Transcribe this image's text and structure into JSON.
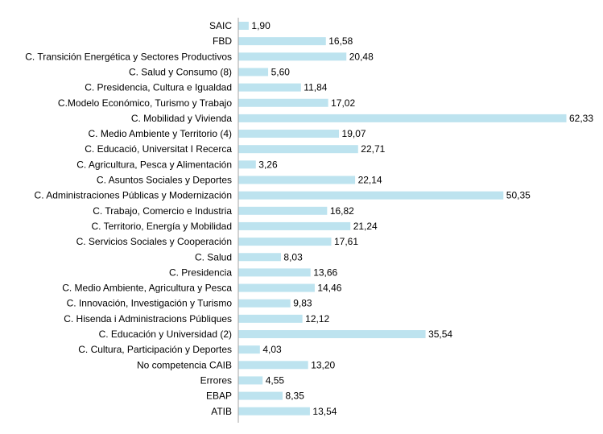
{
  "chart_data": {
    "type": "bar",
    "orientation": "horizontal",
    "bar_color": "#bde3ef",
    "axis_color": "#a6a6a6",
    "categories": [
      "SAIC",
      "FBD",
      "C. Transición Energética y Sectores Productivos",
      "C. Salud y Consumo (8)",
      "C. Presidencia, Cultura e Igualdad",
      "C.Modelo Económico, Turismo y Trabajo",
      "C. Mobilidad y Vivienda",
      "C. Medio Ambiente y Territorio (4)",
      "C. Educació, Universitat I Recerca",
      "C. Agricultura, Pesca y Alimentación",
      "C. Asuntos Sociales y Deportes",
      "C. Administraciones Públicas y Modernización",
      "C. Trabajo, Comercio e Industria",
      "C. Territorio, Energía y Mobilidad",
      "C. Servicios Sociales y Cooperación",
      "C. Salud",
      "C. Presidencia",
      "C. Medio Ambiente, Agricultura y Pesca",
      "C. Innovación, Investigación y Turismo",
      "C. Hisenda i Administracions Públiques",
      "C. Educación y Universidad (2)",
      "C. Cultura, Participación y Deportes",
      "No competencia CAIB",
      "Errores",
      "EBAP",
      "ATIB"
    ],
    "values": [
      1.9,
      16.58,
      20.48,
      5.6,
      11.84,
      17.02,
      62.33,
      19.07,
      22.71,
      3.26,
      22.14,
      50.35,
      16.82,
      21.24,
      17.61,
      8.03,
      13.66,
      14.46,
      9.83,
      12.12,
      35.54,
      4.03,
      13.2,
      4.55,
      8.35,
      13.54
    ],
    "value_labels": [
      "1,90",
      "16,58",
      "20,48",
      "5,60",
      "11,84",
      "17,02",
      "62,33",
      "19,07",
      "22,71",
      "3,26",
      "22,14",
      "50,35",
      "16,82",
      "21,24",
      "17,61",
      "8,03",
      "13,66",
      "14,46",
      "9,83",
      "12,12",
      "35,54",
      "4,03",
      "13,20",
      "4,55",
      "8,35",
      "13,54"
    ],
    "xlim": [
      0,
      62.33
    ]
  }
}
